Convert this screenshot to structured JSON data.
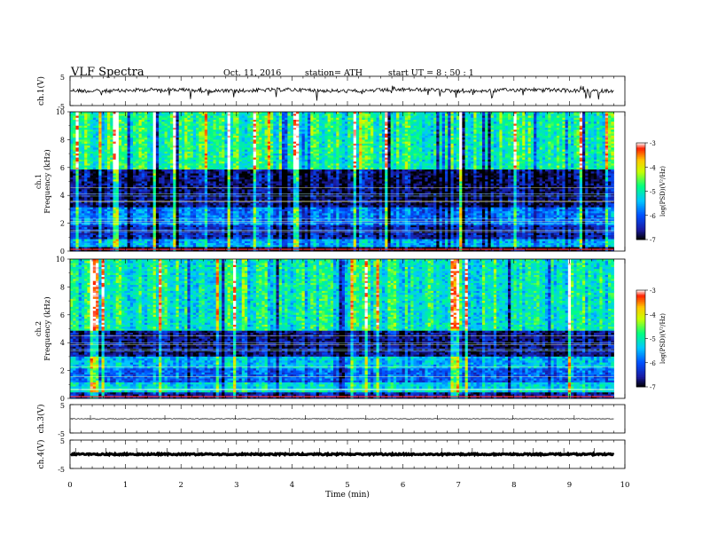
{
  "header": {
    "title": "VLF  Spectra",
    "date": "Oct. 11, 2016",
    "station": "station= ATH",
    "start_ut": "start  UT  =   8  : 50 : 1"
  },
  "colors": {
    "waveform": "#000000",
    "colormap": [
      "#000000",
      "#1a1aa0",
      "#0050ff",
      "#00c8ff",
      "#00ff80",
      "#c8ff00",
      "#ffc800",
      "#ff2000",
      "#ffffff"
    ]
  },
  "chart_data": [
    {
      "type": "line",
      "panel": "ch1-waveform",
      "ylabel": "ch.1(V)",
      "y_ticks": [
        "5",
        "-5"
      ],
      "ylim": [
        -5,
        5
      ],
      "xlim": [
        0,
        10
      ],
      "description_values": {
        "baseline": 0.2,
        "noise_amplitude": 0.6
      }
    },
    {
      "type": "heatmap",
      "panel": "ch1-spectrogram",
      "ylabel": "ch.1\nFrequency  (kHz)",
      "y_ticks": [
        "0",
        "2",
        "4",
        "6",
        "8",
        "10"
      ],
      "ylim": [
        0,
        10
      ],
      "xlim": [
        0,
        9.8
      ],
      "colorbar": {
        "label": "log(PSD)(V²/Hz)",
        "ticks": [
          "-3",
          "-4",
          "-5",
          "-6",
          "-7"
        ],
        "range": [
          -7,
          -3
        ]
      },
      "bands": [
        {
          "f": [
            0,
            0.3
          ],
          "level": -7
        },
        {
          "f": [
            0.3,
            0.9
          ],
          "level": -5.5
        },
        {
          "f": [
            0.9,
            1.8
          ],
          "level": -6.4
        },
        {
          "f": [
            1.8,
            3.2
          ],
          "level": -5.8
        },
        {
          "f": [
            3.2,
            5.8
          ],
          "level": -6.7
        },
        {
          "f": [
            5.8,
            10
          ],
          "level": -4.9
        }
      ]
    },
    {
      "type": "heatmap",
      "panel": "ch2-spectrogram",
      "ylabel": "ch.2\nFrequency  (kHz)",
      "y_ticks": [
        "0",
        "2",
        "4",
        "6",
        "8",
        "10"
      ],
      "ylim": [
        0,
        10
      ],
      "xlim": [
        0,
        9.8
      ],
      "colorbar": {
        "label": "log(PSD)(V²/Hz)",
        "ticks": [
          "-3",
          "-4",
          "-5",
          "-6",
          "-7"
        ],
        "range": [
          -7,
          -3
        ]
      },
      "bands": [
        {
          "f": [
            0,
            0.4
          ],
          "level": -6.5
        },
        {
          "f": [
            0.4,
            1.2
          ],
          "level": -5.2
        },
        {
          "f": [
            1.2,
            2.2
          ],
          "level": -5.9
        },
        {
          "f": [
            2.2,
            3.0
          ],
          "level": -5.4
        },
        {
          "f": [
            3.0,
            4.8
          ],
          "level": -6.6
        },
        {
          "f": [
            4.8,
            10
          ],
          "level": -5.0
        }
      ]
    },
    {
      "type": "line",
      "panel": "ch3-waveform",
      "ylabel": "ch.3(V)",
      "y_ticks": [
        "5",
        "-5"
      ],
      "ylim": [
        -5,
        5
      ],
      "xlim": [
        0,
        10
      ],
      "description_values": {
        "baseline": 0,
        "noise_amplitude": 0.05
      }
    },
    {
      "type": "line",
      "panel": "ch4-waveform",
      "ylabel": "ch.4(V)",
      "y_ticks": [
        "5",
        "-5"
      ],
      "ylim": [
        -5,
        5
      ],
      "xlim": [
        0,
        10
      ],
      "description_values": {
        "baseline": 0,
        "noise_amplitude": 0.25
      }
    }
  ],
  "x_axis": {
    "label": "Time  (min)",
    "ticks": [
      "0",
      "1",
      "2",
      "3",
      "4",
      "5",
      "6",
      "7",
      "8",
      "9",
      "10"
    ],
    "xlim": [
      0,
      10
    ]
  }
}
